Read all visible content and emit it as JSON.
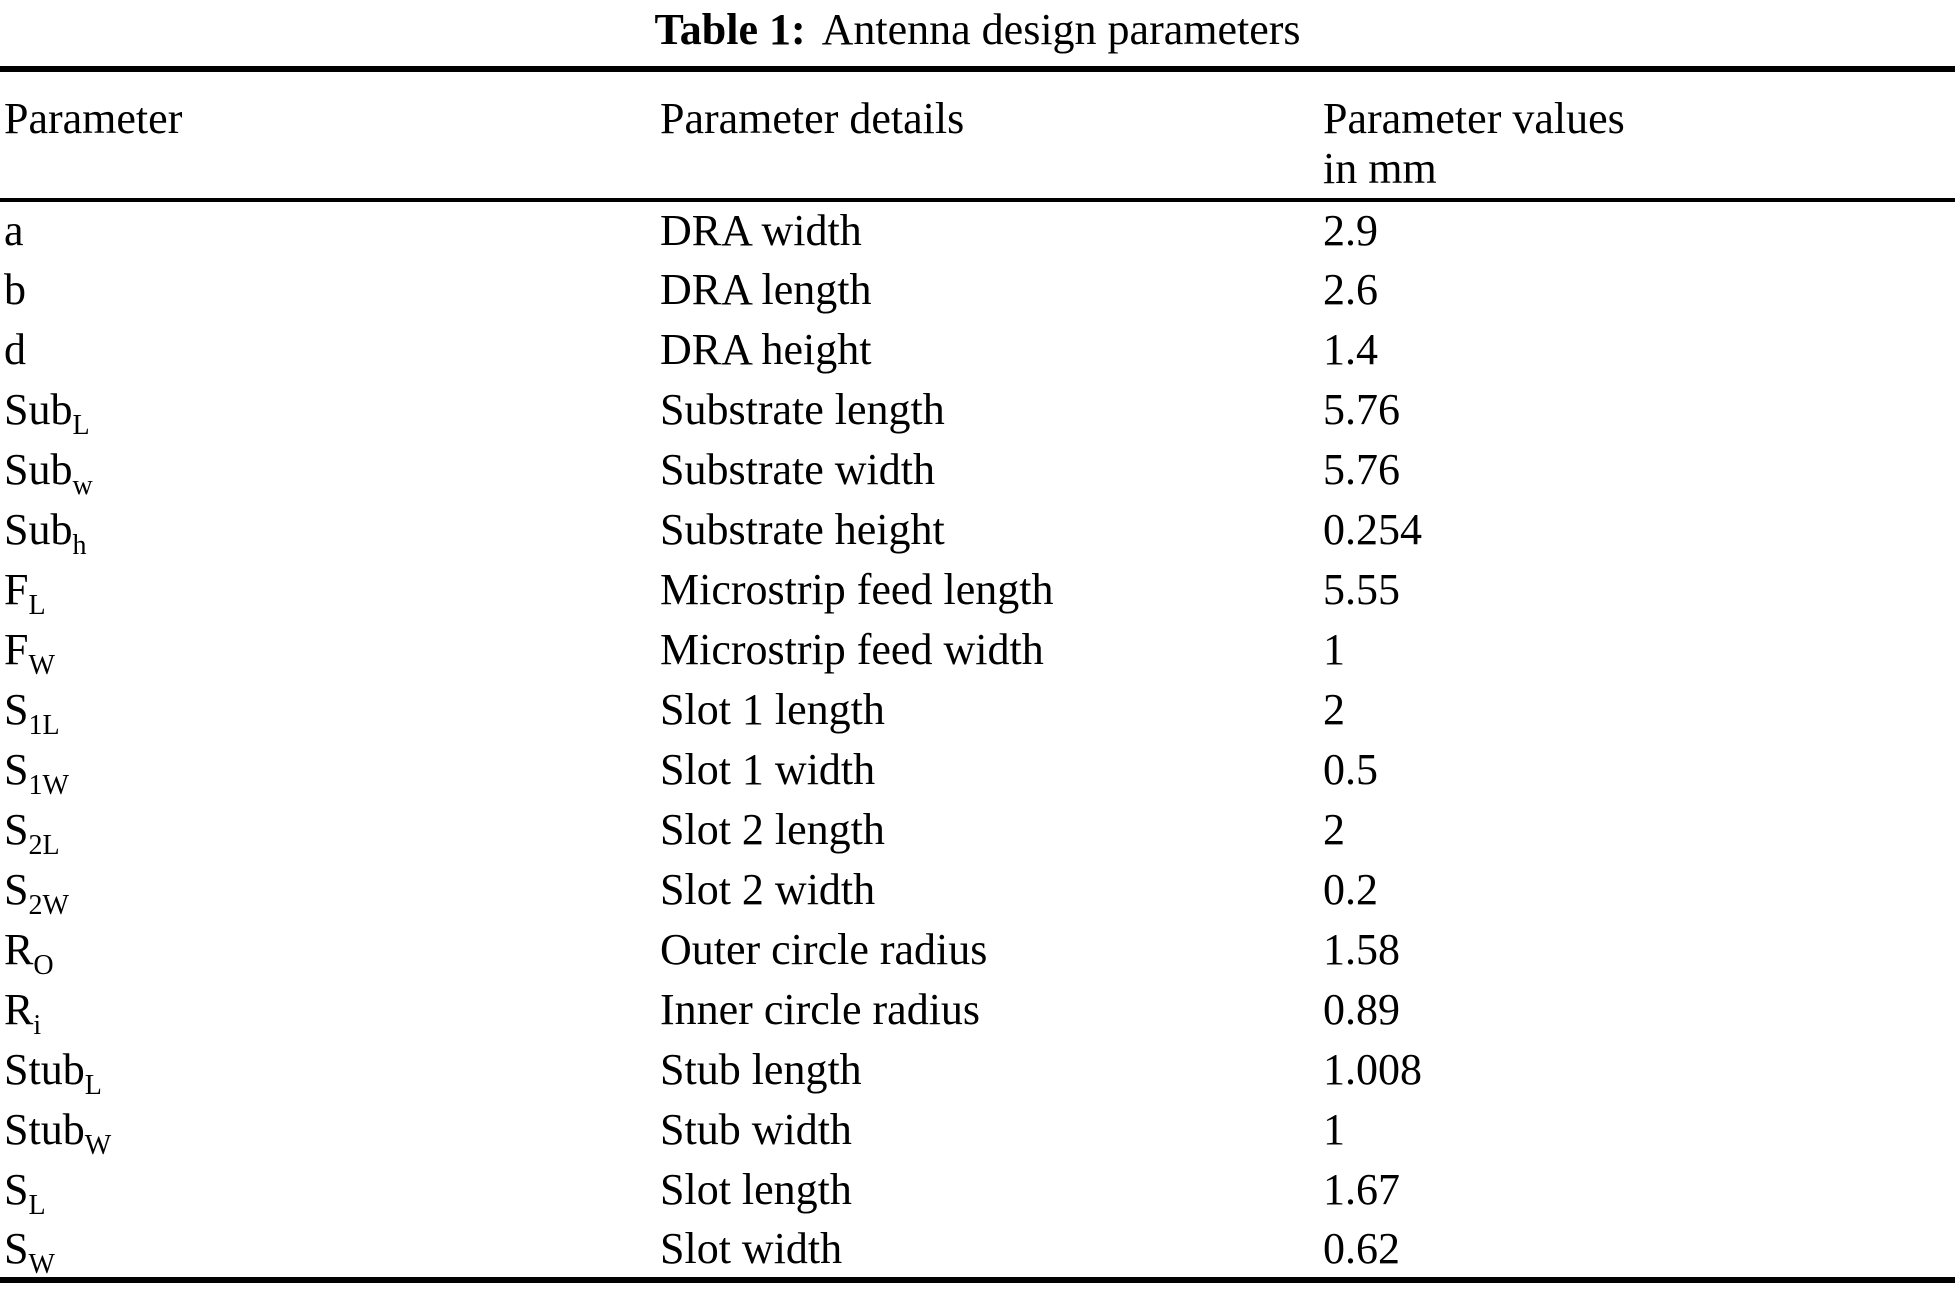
{
  "page": {
    "background_color": "#ffffff",
    "text_color": "#000000"
  },
  "caption": {
    "label": "Table 1:",
    "title": "Antenna design parameters"
  },
  "table": {
    "headers": [
      {
        "line1": "Parameter",
        "line2": ""
      },
      {
        "line1": "Parameter details",
        "line2": ""
      },
      {
        "line1": "Parameter values",
        "line2": "in mm"
      }
    ],
    "rows": [
      {
        "symbol": "a",
        "subscript": "",
        "details": "DRA width",
        "value": "2.9"
      },
      {
        "symbol": "b",
        "subscript": "",
        "details": "DRA length",
        "value": "2.6"
      },
      {
        "symbol": "d",
        "subscript": "",
        "details": "DRA height",
        "value": "1.4"
      },
      {
        "symbol": "Sub",
        "subscript": "L",
        "details": "Substrate length",
        "value": "5.76"
      },
      {
        "symbol": "Sub",
        "subscript": "w",
        "details": "Substrate width",
        "value": "5.76"
      },
      {
        "symbol": "Sub",
        "subscript": "h",
        "details": "Substrate height",
        "value": "0.254"
      },
      {
        "symbol": "F",
        "subscript": "L",
        "details": "Microstrip feed length",
        "value": "5.55"
      },
      {
        "symbol": "F",
        "subscript": "W",
        "details": "Microstrip feed width",
        "value": "1"
      },
      {
        "symbol": "S",
        "subscript": "1L",
        "details": "Slot 1 length",
        "value": "2"
      },
      {
        "symbol": "S",
        "subscript": "1W",
        "details": "Slot 1 width",
        "value": "0.5"
      },
      {
        "symbol": "S",
        "subscript": "2L",
        "details": "Slot 2 length",
        "value": "2"
      },
      {
        "symbol": "S",
        "subscript": "2W",
        "details": "Slot 2 width",
        "value": "0.2"
      },
      {
        "symbol": "R",
        "subscript": "O",
        "details": "Outer circle radius",
        "value": "1.58"
      },
      {
        "symbol": "R",
        "subscript": "i",
        "details": "Inner circle radius",
        "value": "0.89"
      },
      {
        "symbol": "Stub",
        "subscript": "L",
        "details": "Stub length",
        "value": "1.008"
      },
      {
        "symbol": "Stub",
        "subscript": "W",
        "details": "Stub width",
        "value": "1"
      },
      {
        "symbol": "S",
        "subscript": "L",
        "details": "Slot length",
        "value": "1.67"
      },
      {
        "symbol": "S",
        "subscript": "W",
        "details": "Slot width",
        "value": "0.62"
      }
    ]
  }
}
